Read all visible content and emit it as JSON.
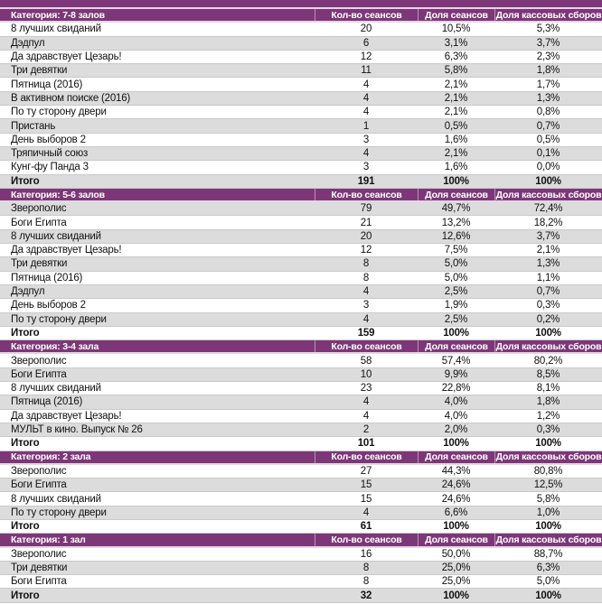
{
  "report": {
    "colors": {
      "header_purple": "#7d3778",
      "band_gray": "#dcdcdc"
    },
    "columns": {
      "sessions": "Кол-во сеансов",
      "session_share": "Доля сеансов",
      "boxoffice_share": "Доля кассовых сборов"
    },
    "tables": [
      {
        "category": "Категория: 7-8 залов",
        "rows": [
          {
            "name": "8 лучших свиданий",
            "sessions": "20",
            "session_share": "10,5%",
            "boxoffice_share": "5,3%"
          },
          {
            "name": "Дэдпул",
            "sessions": "6",
            "session_share": "3,1%",
            "boxoffice_share": "3,7%"
          },
          {
            "name": "Да здравствует Цезарь!",
            "sessions": "12",
            "session_share": "6,3%",
            "boxoffice_share": "2,3%"
          },
          {
            "name": "Три девятки",
            "sessions": "11",
            "session_share": "5,8%",
            "boxoffice_share": "1,8%"
          },
          {
            "name": "Пятница (2016)",
            "sessions": "4",
            "session_share": "2,1%",
            "boxoffice_share": "1,7%"
          },
          {
            "name": "В активном поиске (2016)",
            "sessions": "4",
            "session_share": "2,1%",
            "boxoffice_share": "1,3%"
          },
          {
            "name": "По ту сторону двери",
            "sessions": "4",
            "session_share": "2,1%",
            "boxoffice_share": "0,8%"
          },
          {
            "name": "Пристань",
            "sessions": "1",
            "session_share": "0,5%",
            "boxoffice_share": "0,7%"
          },
          {
            "name": "День выборов 2",
            "sessions": "3",
            "session_share": "1,6%",
            "boxoffice_share": "0,5%"
          },
          {
            "name": "Тряпичный союз",
            "sessions": "4",
            "session_share": "2,1%",
            "boxoffice_share": "0,1%"
          },
          {
            "name": "Кунг-фу Панда 3",
            "sessions": "3",
            "session_share": "1,6%",
            "boxoffice_share": "0,0%"
          }
        ],
        "total": {
          "name": "Итого",
          "sessions": "191",
          "session_share": "100%",
          "boxoffice_share": "100%"
        }
      },
      {
        "category": "Категория: 5-6 залов",
        "rows": [
          {
            "name": "Зверополис",
            "sessions": "79",
            "session_share": "49,7%",
            "boxoffice_share": "72,4%"
          },
          {
            "name": "Боги Египта",
            "sessions": "21",
            "session_share": "13,2%",
            "boxoffice_share": "18,2%"
          },
          {
            "name": "8 лучших свиданий",
            "sessions": "20",
            "session_share": "12,6%",
            "boxoffice_share": "3,7%"
          },
          {
            "name": "Да здравствует Цезарь!",
            "sessions": "12",
            "session_share": "7,5%",
            "boxoffice_share": "2,1%"
          },
          {
            "name": "Три девятки",
            "sessions": "8",
            "session_share": "5,0%",
            "boxoffice_share": "1,3%"
          },
          {
            "name": "Пятница (2016)",
            "sessions": "8",
            "session_share": "5,0%",
            "boxoffice_share": "1,1%"
          },
          {
            "name": "Дэдпул",
            "sessions": "4",
            "session_share": "2,5%",
            "boxoffice_share": "0,7%"
          },
          {
            "name": "День выборов 2",
            "sessions": "3",
            "session_share": "1,9%",
            "boxoffice_share": "0,3%"
          },
          {
            "name": "По ту сторону двери",
            "sessions": "4",
            "session_share": "2,5%",
            "boxoffice_share": "0,2%"
          }
        ],
        "total": {
          "name": "Итого",
          "sessions": "159",
          "session_share": "100%",
          "boxoffice_share": "100%"
        }
      },
      {
        "category": "Категория: 3-4 зала",
        "rows": [
          {
            "name": "Зверополис",
            "sessions": "58",
            "session_share": "57,4%",
            "boxoffice_share": "80,2%"
          },
          {
            "name": "Боги Египта",
            "sessions": "10",
            "session_share": "9,9%",
            "boxoffice_share": "8,5%"
          },
          {
            "name": "8 лучших свиданий",
            "sessions": "23",
            "session_share": "22,8%",
            "boxoffice_share": "8,1%"
          },
          {
            "name": "Пятница (2016)",
            "sessions": "4",
            "session_share": "4,0%",
            "boxoffice_share": "1,8%"
          },
          {
            "name": "Да здравствует Цезарь!",
            "sessions": "4",
            "session_share": "4,0%",
            "boxoffice_share": "1,2%"
          },
          {
            "name": "МУЛЬТ в кино. Выпуск № 26",
            "sessions": "2",
            "session_share": "2,0%",
            "boxoffice_share": "0,3%"
          }
        ],
        "total": {
          "name": "Итого",
          "sessions": "101",
          "session_share": "100%",
          "boxoffice_share": "100%"
        }
      },
      {
        "category": "Категория: 2 зала",
        "rows": [
          {
            "name": "Зверополис",
            "sessions": "27",
            "session_share": "44,3%",
            "boxoffice_share": "80,8%"
          },
          {
            "name": "Боги Египта",
            "sessions": "15",
            "session_share": "24,6%",
            "boxoffice_share": "12,5%"
          },
          {
            "name": "8 лучших свиданий",
            "sessions": "15",
            "session_share": "24,6%",
            "boxoffice_share": "5,8%"
          },
          {
            "name": "По ту сторону двери",
            "sessions": "4",
            "session_share": "6,6%",
            "boxoffice_share": "1,0%"
          }
        ],
        "total": {
          "name": "Итого",
          "sessions": "61",
          "session_share": "100%",
          "boxoffice_share": "100%"
        }
      },
      {
        "category": "Категория: 1 зал",
        "rows": [
          {
            "name": "Зверополис",
            "sessions": "16",
            "session_share": "50,0%",
            "boxoffice_share": "88,7%"
          },
          {
            "name": "Три девятки",
            "sessions": "8",
            "session_share": "25,0%",
            "boxoffice_share": "6,3%"
          },
          {
            "name": "Боги Египта",
            "sessions": "8",
            "session_share": "25,0%",
            "boxoffice_share": "5,0%"
          }
        ],
        "total": {
          "name": "Итого",
          "sessions": "32",
          "session_share": "100%",
          "boxoffice_share": "100%"
        }
      }
    ]
  }
}
